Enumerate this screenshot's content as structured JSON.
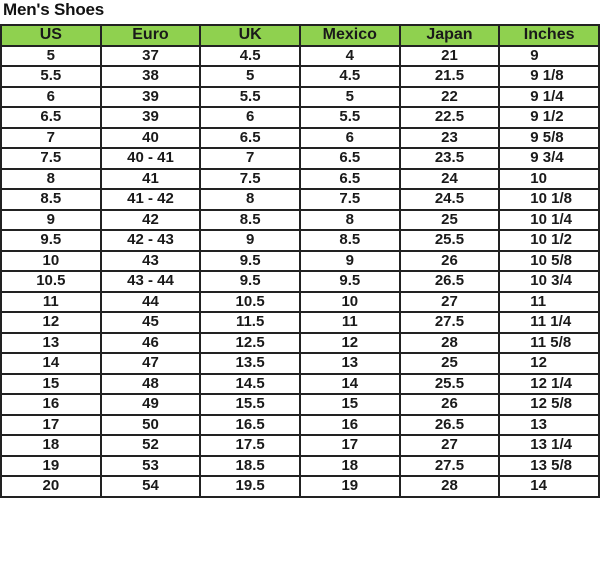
{
  "title": "Men's Shoes",
  "header_color": "#8fd14f",
  "columns": [
    "US",
    "Euro",
    "UK",
    "Mexico",
    "Japan",
    "Inches"
  ],
  "rows": [
    [
      "5",
      "37",
      "4.5",
      "4",
      "21",
      "9"
    ],
    [
      "5.5",
      "38",
      "5",
      "4.5",
      "21.5",
      "9 1/8"
    ],
    [
      "6",
      "39",
      "5.5",
      "5",
      "22",
      "9 1/4"
    ],
    [
      "6.5",
      "39",
      "6",
      "5.5",
      "22.5",
      "9 1/2"
    ],
    [
      "7",
      "40",
      "6.5",
      "6",
      "23",
      "9 5/8"
    ],
    [
      "7.5",
      "40 - 41",
      "7",
      "6.5",
      "23.5",
      "9 3/4"
    ],
    [
      "8",
      "41",
      "7.5",
      "6.5",
      "24",
      "10"
    ],
    [
      "8.5",
      "41 - 42",
      "8",
      "7.5",
      "24.5",
      "10 1/8"
    ],
    [
      "9",
      "42",
      "8.5",
      "8",
      "25",
      "10 1/4"
    ],
    [
      "9.5",
      "42 - 43",
      "9",
      "8.5",
      "25.5",
      "10 1/2"
    ],
    [
      "10",
      "43",
      "9.5",
      "9",
      "26",
      "10 5/8"
    ],
    [
      "10.5",
      "43 - 44",
      "9.5",
      "9.5",
      "26.5",
      "10 3/4"
    ],
    [
      "11",
      "44",
      "10.5",
      "10",
      "27",
      "11"
    ],
    [
      "12",
      "45",
      "11.5",
      "11",
      "27.5",
      "11 1/4"
    ],
    [
      "13",
      "46",
      "12.5",
      "12",
      "28",
      "11 5/8"
    ],
    [
      "14",
      "47",
      "13.5",
      "13",
      "25",
      "12"
    ],
    [
      "15",
      "48",
      "14.5",
      "14",
      "25.5",
      "12 1/4"
    ],
    [
      "16",
      "49",
      "15.5",
      "15",
      "26",
      "12 5/8"
    ],
    [
      "17",
      "50",
      "16.5",
      "16",
      "26.5",
      "13"
    ],
    [
      "18",
      "52",
      "17.5",
      "17",
      "27",
      "13 1/4"
    ],
    [
      "19",
      "53",
      "18.5",
      "18",
      "27.5",
      "13 5/8"
    ],
    [
      "20",
      "54",
      "19.5",
      "19",
      "28",
      "14"
    ]
  ]
}
